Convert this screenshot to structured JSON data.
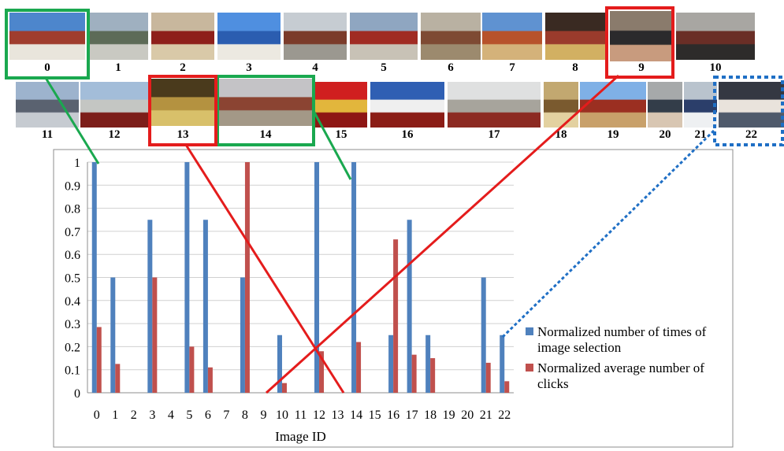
{
  "chart_data": {
    "type": "bar",
    "xlabel": "Image ID",
    "ylabel": "",
    "ylim": [
      0,
      1
    ],
    "yticks": [
      "0",
      "0.1",
      "0.2",
      "0.3",
      "0.4",
      "0.5",
      "0.6",
      "0.7",
      "0.8",
      "0.9",
      "1"
    ],
    "categories": [
      "0",
      "1",
      "2",
      "3",
      "4",
      "5",
      "6",
      "7",
      "8",
      "9",
      "10",
      "11",
      "12",
      "13",
      "14",
      "15",
      "16",
      "17",
      "18",
      "19",
      "20",
      "21",
      "22"
    ],
    "series": [
      {
        "name": "Normalized number of times of image selection",
        "color": "#4f81bd",
        "values": [
          1,
          0.5,
          0,
          0.75,
          0,
          1,
          0.75,
          0,
          0.5,
          0,
          0.25,
          0,
          1,
          0,
          1,
          0,
          0.25,
          0.75,
          0.25,
          0,
          0,
          0.5,
          0.25
        ]
      },
      {
        "name": "Normalized average number of clicks",
        "color": "#c0504d",
        "values": [
          0.285,
          0.125,
          0,
          0.5,
          0,
          0.2,
          0.11,
          0,
          1,
          0,
          0.042,
          0,
          0.18,
          0,
          0.22,
          0,
          0.665,
          0.165,
          0.15,
          0,
          0,
          0.13,
          0.05
        ]
      }
    ],
    "legend_position": "right",
    "grid": true
  },
  "gallery": {
    "labels": [
      "0",
      "1",
      "2",
      "3",
      "4",
      "5",
      "6",
      "7",
      "8",
      "9",
      "10",
      "11",
      "12",
      "13",
      "14",
      "15",
      "16",
      "17",
      "18",
      "19",
      "20",
      "21",
      "22"
    ],
    "highlight_green": [
      "0",
      "14"
    ],
    "highlight_red": [
      "9",
      "13"
    ],
    "highlight_blue_dotted": [
      "22"
    ]
  },
  "colors": {
    "highlight_green": "#1aa84f",
    "highlight_red": "#e41c1c",
    "highlight_blue": "#1f6fc5"
  }
}
